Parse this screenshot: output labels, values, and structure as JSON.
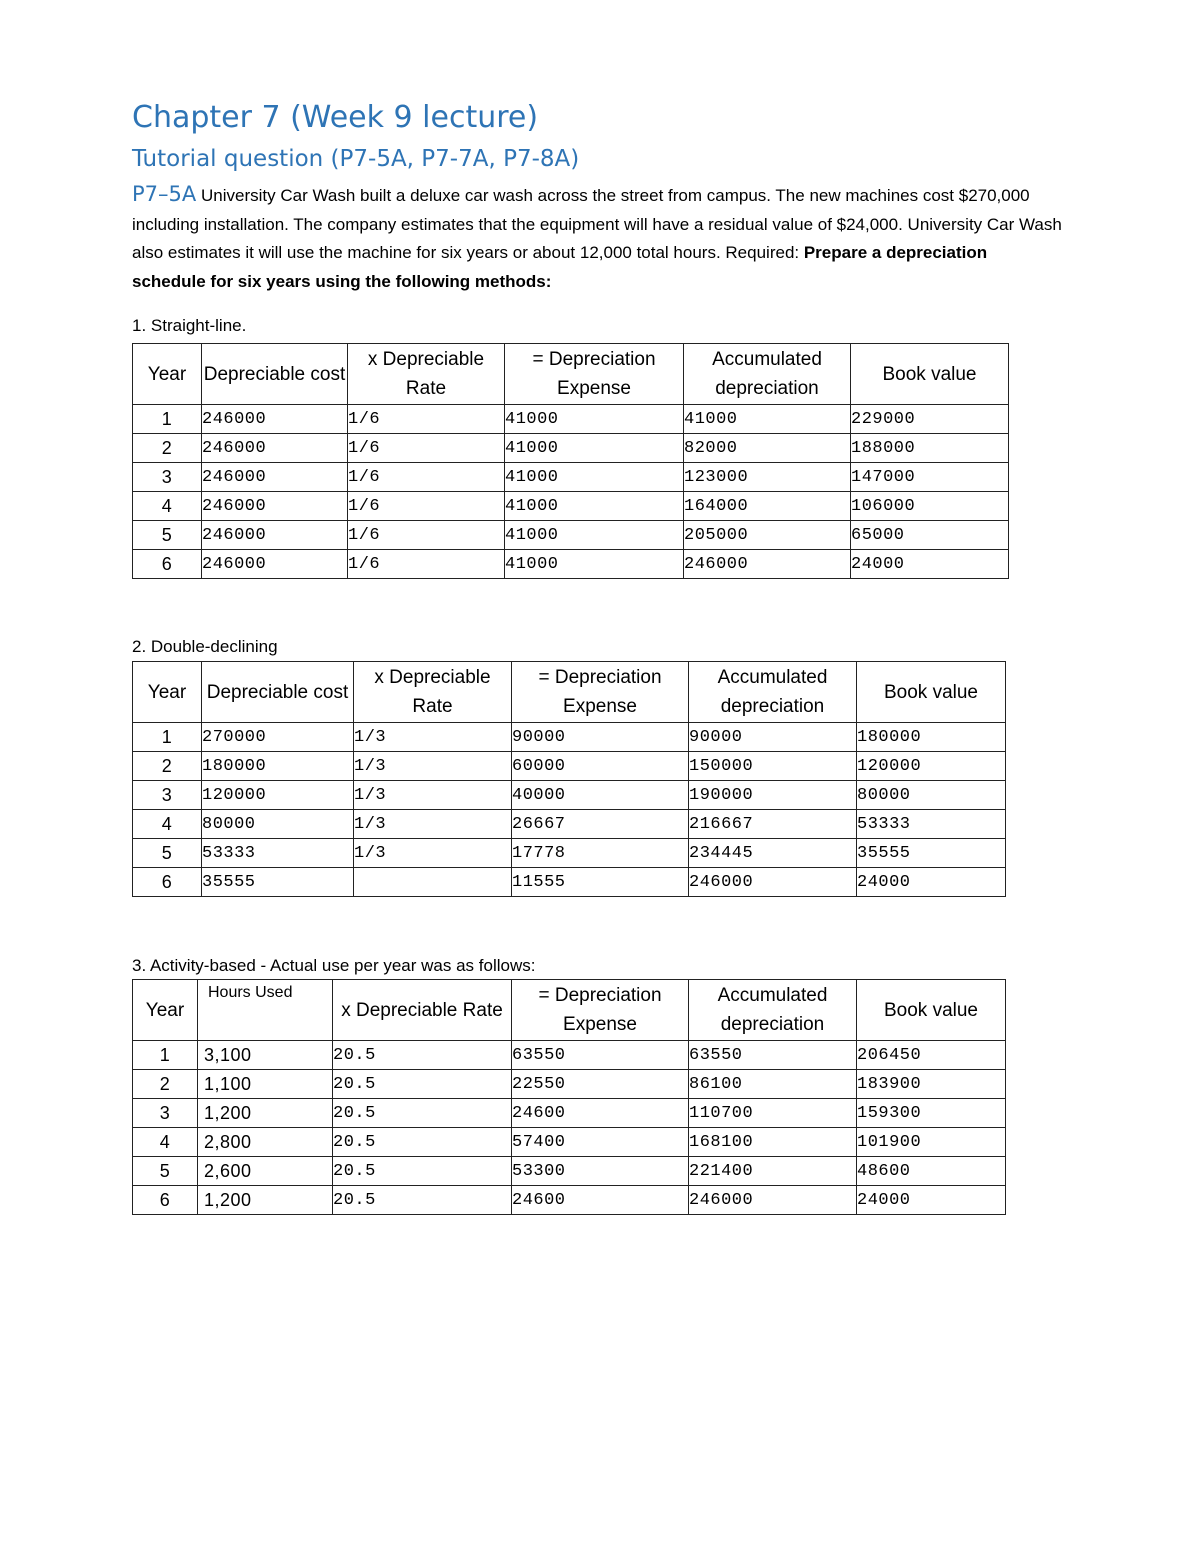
{
  "title": "Chapter 7 (Week 9 lecture)",
  "subtitle": "Tutorial question (P7-5A, P7-7A, P7-8A)",
  "problem": {
    "code": "P7–5A",
    "text": " University Car Wash built a deluxe car wash across the street from campus. The new machines cost $270,000 including installation. The company estimates that the equipment will have a residual value of $24,000. University Car Wash also estimates it will use the machine for six years or about 12,000 total hours. Required: ",
    "bold": "Prepare a depreciation schedule for six years using the following methods:"
  },
  "tables": [
    {
      "label": "1.    Straight-line.",
      "headers": [
        "Year",
        "Depreciable cost",
        "x Depreciable Rate",
        "= Depreciation Expense",
        "Accumulated depreciation",
        "Book value"
      ],
      "rows": [
        [
          "1",
          "246000",
          "1/6",
          "41000",
          "41000",
          "229000"
        ],
        [
          "2",
          "246000",
          "1/6",
          "41000",
          "82000",
          "188000"
        ],
        [
          "3",
          "246000",
          "1/6",
          "41000",
          "123000",
          "147000"
        ],
        [
          "4",
          "246000",
          "1/6",
          "41000",
          "164000",
          "106000"
        ],
        [
          "5",
          "246000",
          "1/6",
          "41000",
          "205000",
          "65000"
        ],
        [
          "6",
          "246000",
          "1/6",
          "41000",
          "246000",
          "24000"
        ]
      ]
    },
    {
      "label": "2. Double-declining",
      "headers": [
        "Year",
        "Depreciable cost",
        "x Depreciable Rate",
        "= Depreciation Expense",
        "Accumulated depreciation",
        "Book value"
      ],
      "rows": [
        [
          "1",
          "270000",
          "1/3",
          "90000",
          "90000",
          "180000"
        ],
        [
          "2",
          "180000",
          "1/3",
          "60000",
          "150000",
          "120000"
        ],
        [
          "3",
          "120000",
          "1/3",
          "40000",
          "190000",
          "80000"
        ],
        [
          "4",
          "80000",
          "1/3",
          "26667",
          "216667",
          "53333"
        ],
        [
          "5",
          "53333",
          "1/3",
          "17778",
          "234445",
          "35555"
        ],
        [
          "6",
          "35555",
          "",
          "11555",
          "246000",
          "24000"
        ]
      ]
    },
    {
      "label": "3. Activity-based - Actual use per year was as follows:",
      "headers": [
        "Year",
        "Hours Used",
        "x Depreciable Rate",
        "= Depreciation Expense",
        "Accumulated depreciation",
        "Book value"
      ],
      "rows": [
        [
          "1",
          "3,100",
          "20.5",
          "63550",
          "63550",
          "206450"
        ],
        [
          "2",
          "1,100",
          "20.5",
          "22550",
          "86100",
          "183900"
        ],
        [
          "3",
          "1,200",
          "20.5",
          "24600",
          "110700",
          "159300"
        ],
        [
          "4",
          "2,800",
          "20.5",
          "57400",
          "168100",
          "101900"
        ],
        [
          "5",
          "2,600",
          "20.5",
          "53300",
          "221400",
          "48600"
        ],
        [
          "6",
          "1,200",
          "20.5",
          "24600",
          "246000",
          "24000"
        ]
      ]
    }
  ]
}
